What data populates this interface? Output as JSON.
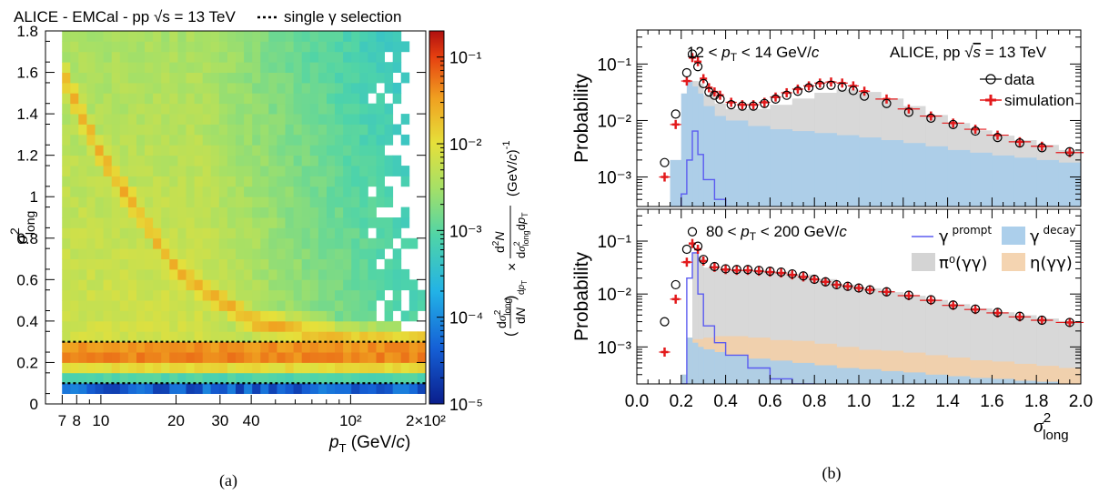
{
  "chart_data": [
    {
      "panel": "(a)",
      "type": "heatmap",
      "title": "ALICE - EMCal - pp √s = 13 TeV",
      "legend": [
        {
          "style": "dotted",
          "label": "single γ selection"
        }
      ],
      "xlabel": "p_T (GeV/c)",
      "ylabel": "σ²_long",
      "zlabel": "(dσ²_long/dN)_{dp_T} × d²N/(dσ²_long dp_T) (GeV/c)⁻¹",
      "x_scale": "log",
      "xlim": [
        6,
        200
      ],
      "ylim": [
        0,
        1.8
      ],
      "z_scale": "log",
      "zlim": [
        1e-05,
        0.2
      ],
      "x_ticks": [
        "7",
        "8",
        "10",
        "20",
        "30",
        "40",
        "10²",
        "2×10²"
      ],
      "y_ticks": [
        "0",
        "0.2",
        "0.4",
        "0.6",
        "0.8",
        "1",
        "1.2",
        "1.4",
        "1.6",
        "1.8"
      ],
      "z_ticks": [
        "10⁻⁵",
        "10⁻⁴",
        "10⁻³",
        "10⁻²",
        "10⁻¹"
      ],
      "selection_lines": [
        0.1,
        0.3
      ],
      "features": [
        {
          "name": "photon band",
          "y_range": [
            0.1,
            0.3
          ],
          "peak_y": 0.25,
          "level": "high"
        },
        {
          "name": "merged pi0 band",
          "points": [
            [
              7,
              1.6
            ],
            [
              10,
              1.2
            ],
            [
              20,
              0.65
            ],
            [
              40,
              0.4
            ],
            [
              100,
              0.3
            ]
          ],
          "level": "high"
        }
      ]
    },
    {
      "panel": "(b) top",
      "type": "histogram",
      "label": "12 < p_T < 14 GeV/c",
      "label2": "ALICE, pp √s = 13 TeV",
      "ylabel": "Probability",
      "y_scale": "log",
      "ylim": [
        0.0003,
        0.4
      ],
      "xlim": [
        0,
        2
      ],
      "y_ticks": [
        "10⁻³",
        "10⁻²",
        "10⁻¹"
      ],
      "x": [
        0.125,
        0.175,
        0.225,
        0.25,
        0.275,
        0.3,
        0.325,
        0.35,
        0.375,
        0.425,
        0.475,
        0.525,
        0.575,
        0.625,
        0.675,
        0.725,
        0.775,
        0.825,
        0.875,
        0.925,
        0.975,
        1.025,
        1.125,
        1.225,
        1.325,
        1.425,
        1.525,
        1.625,
        1.725,
        1.825,
        1.95
      ],
      "series": [
        {
          "name": "data",
          "values": [
            0.0018,
            0.013,
            0.07,
            0.15,
            0.09,
            0.045,
            0.032,
            0.028,
            0.024,
            0.019,
            0.018,
            0.018,
            0.02,
            0.024,
            0.028,
            0.033,
            0.038,
            0.042,
            0.042,
            0.039,
            0.034,
            0.027,
            0.02,
            0.014,
            0.011,
            0.0085,
            0.0065,
            0.005,
            0.004,
            0.0033,
            0.0028
          ]
        },
        {
          "name": "simulation",
          "values": [
            0.001,
            0.0085,
            0.05,
            0.13,
            0.11,
            0.055,
            0.038,
            0.032,
            0.028,
            0.021,
            0.019,
            0.019,
            0.021,
            0.026,
            0.031,
            0.036,
            0.041,
            0.046,
            0.048,
            0.046,
            0.041,
            0.033,
            0.024,
            0.016,
            0.012,
            0.009,
            0.007,
            0.0055,
            0.0042,
            0.0035,
            0.0027
          ]
        }
      ],
      "stacked_components": {
        "bins": [
          0.1,
          0.15,
          0.2,
          0.225,
          0.25,
          0.275,
          0.3,
          0.35,
          0.4,
          0.5,
          0.6,
          0.7,
          0.8,
          0.9,
          1.0,
          1.1,
          1.2,
          1.3,
          1.4,
          1.5,
          1.6,
          1.7,
          1.8,
          1.9,
          2.0
        ],
        "gamma_decay": [
          0.0003,
          0.002,
          0.03,
          0.05,
          0.04,
          0.03,
          0.018,
          0.012,
          0.01,
          0.008,
          0.007,
          0.0065,
          0.006,
          0.0055,
          0.005,
          0.0045,
          0.004,
          0.0035,
          0.003,
          0.0027,
          0.0024,
          0.0022,
          0.002,
          0.0018
        ],
        "pi0_gg": [
          0.0,
          0.0,
          0.0,
          0.0,
          0.01,
          0.015,
          0.01,
          0.008,
          0.006,
          0.008,
          0.012,
          0.018,
          0.025,
          0.03,
          0.027,
          0.02,
          0.014,
          0.009,
          0.006,
          0.004,
          0.003,
          0.0023,
          0.0017,
          0.0012
        ],
        "gamma_prompt": [
          0.0,
          0.0002,
          0.0005,
          0.002,
          0.0065,
          0.0025,
          0.0009,
          0.0004,
          0.0002,
          0.0,
          0.0,
          0.0,
          0.0,
          0.0,
          0.0,
          0.0,
          0.0,
          0.0,
          0.0,
          0.0,
          0.0,
          0.0,
          0.0,
          0.0
        ]
      }
    },
    {
      "panel": "(b) bottom",
      "type": "histogram",
      "label": "80 < p_T < 200 GeV/c",
      "ylabel": "Probability",
      "y_scale": "log",
      "ylim": [
        0.0002,
        0.4
      ],
      "xlim": [
        0,
        2
      ],
      "y_ticks": [
        "10⁻³",
        "10⁻²",
        "10⁻¹"
      ],
      "xlabel": "σ²_long",
      "x_ticks": [
        "0.0",
        "0.2",
        "0.4",
        "0.6",
        "0.8",
        "1.0",
        "1.2",
        "1.4",
        "1.6",
        "1.8",
        "2.0"
      ],
      "legend": [
        "γ prompt",
        "γ decay",
        "π⁰(γγ)",
        "η(γγ)"
      ],
      "x": [
        0.125,
        0.175,
        0.225,
        0.25,
        0.275,
        0.3,
        0.35,
        0.4,
        0.45,
        0.5,
        0.55,
        0.6,
        0.65,
        0.7,
        0.75,
        0.8,
        0.85,
        0.9,
        0.95,
        1.0,
        1.05,
        1.125,
        1.225,
        1.325,
        1.425,
        1.525,
        1.625,
        1.725,
        1.825,
        1.95
      ],
      "series": [
        {
          "name": "data",
          "values": [
            0.003,
            0.015,
            0.07,
            0.15,
            0.08,
            0.045,
            0.033,
            0.03,
            0.029,
            0.029,
            0.028,
            0.027,
            0.026,
            0.024,
            0.022,
            0.019,
            0.017,
            0.015,
            0.014,
            0.013,
            0.012,
            0.011,
            0.0095,
            0.0078,
            0.0062,
            0.0052,
            0.0045,
            0.0038,
            0.0032,
            0.0029
          ]
        },
        {
          "name": "simulation",
          "values": [
            0.0008,
            0.008,
            0.04,
            0.09,
            0.07,
            0.042,
            0.032,
            0.029,
            0.028,
            0.028,
            0.027,
            0.026,
            0.025,
            0.023,
            0.021,
            0.019,
            0.017,
            0.015,
            0.014,
            0.013,
            0.012,
            0.011,
            0.0093,
            0.0076,
            0.0061,
            0.0051,
            0.0044,
            0.0037,
            0.0032,
            0.0029
          ]
        }
      ],
      "stacked_components": {
        "bins": [
          0.1,
          0.15,
          0.2,
          0.225,
          0.25,
          0.275,
          0.3,
          0.35,
          0.4,
          0.5,
          0.6,
          0.7,
          0.8,
          0.9,
          1.0,
          1.1,
          1.2,
          1.3,
          1.4,
          1.5,
          1.6,
          1.7,
          1.8,
          1.9,
          2.0
        ],
        "gamma_decay": [
          0.0,
          0.0,
          0.0003,
          0.0015,
          0.0012,
          0.001,
          0.0009,
          0.0008,
          0.0007,
          0.0006,
          0.00055,
          0.0005,
          0.00045,
          0.0004,
          0.00038,
          0.00035,
          0.00033,
          0.0003,
          0.00028,
          0.00026,
          0.00025,
          0.00023,
          0.00022,
          0.0002
        ],
        "pi0_gg": [
          0.0,
          0.0,
          0.0,
          0.0,
          0.06,
          0.05,
          0.03,
          0.027,
          0.026,
          0.026,
          0.025,
          0.022,
          0.018,
          0.014,
          0.012,
          0.01,
          0.0085,
          0.007,
          0.0058,
          0.0048,
          0.004,
          0.0035,
          0.003,
          0.0027
        ],
        "eta_gg": [
          0.0,
          0.0,
          0.0,
          0.0,
          0.0002,
          0.0004,
          0.0006,
          0.0008,
          0.0009,
          0.0009,
          0.0008,
          0.0008,
          0.0007,
          0.0006,
          0.0005,
          0.0005,
          0.00045,
          0.0004,
          0.00035,
          0.0003,
          0.00028,
          0.00025,
          0.00022,
          0.0002
        ],
        "gamma_prompt": [
          0.0,
          0.0,
          0.0002,
          0.02,
          0.06,
          0.01,
          0.0025,
          0.0012,
          0.0007,
          0.0004,
          0.00025,
          0.0002,
          0.0,
          0.0,
          0.0,
          0.0,
          0.0,
          0.0,
          0.0,
          0.0,
          0.0,
          0.0,
          0.0,
          0.0
        ]
      }
    }
  ],
  "captions": {
    "a": "(a)",
    "b": "(b)"
  }
}
